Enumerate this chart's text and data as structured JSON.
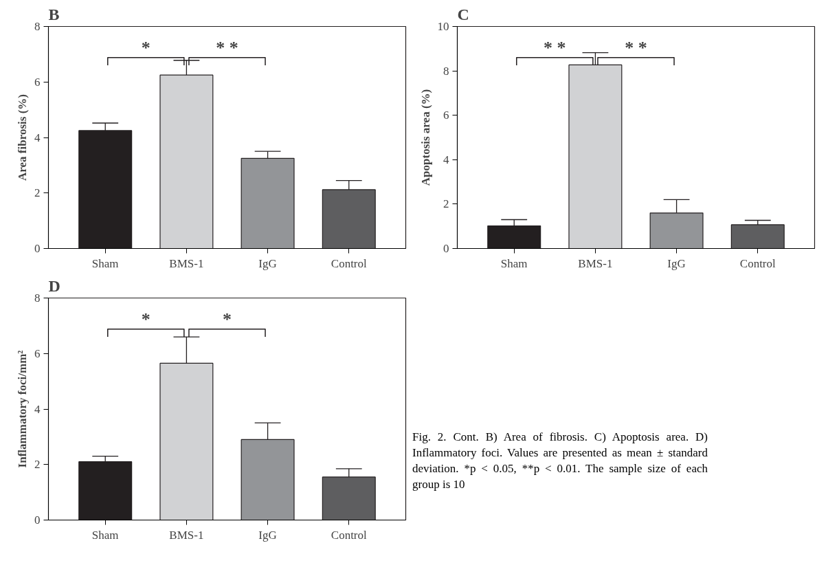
{
  "chart_data": [
    {
      "type": "bar",
      "title": "B",
      "ylabel": "Area fibrosis (%)",
      "categories": [
        "Sham",
        "BMS-1",
        "IgG",
        "Control"
      ],
      "values": [
        4.25,
        6.25,
        3.25,
        2.12
      ],
      "errors": [
        0.27,
        0.53,
        0.25,
        0.33
      ],
      "colors": [
        "#231f20",
        "#d1d2d4",
        "#939598",
        "#5e5e60"
      ],
      "ylim": [
        0,
        8
      ],
      "yticks": [
        0,
        2,
        4,
        6,
        8
      ],
      "grid": false,
      "annotations": [
        "*",
        "* *"
      ]
    },
    {
      "type": "bar",
      "title": "C",
      "ylabel": "Apoptosis area (%)",
      "categories": [
        "Sham",
        "BMS-1",
        "IgG",
        "Control"
      ],
      "values": [
        1.02,
        8.27,
        1.6,
        1.07
      ],
      "errors": [
        0.28,
        0.55,
        0.6,
        0.2
      ],
      "colors": [
        "#231f20",
        "#d1d2d4",
        "#939598",
        "#5e5e60"
      ],
      "ylim": [
        0,
        10
      ],
      "yticks": [
        0,
        2,
        4,
        6,
        8,
        10
      ],
      "grid": false,
      "annotations": [
        "* *",
        "* *"
      ]
    },
    {
      "type": "bar",
      "title": "D",
      "ylabel": "Inflammatory foci/mm²",
      "categories": [
        "Sham",
        "BMS-1",
        "IgG",
        "Control"
      ],
      "values": [
        2.1,
        5.65,
        2.9,
        1.55
      ],
      "errors": [
        0.2,
        0.95,
        0.6,
        0.3
      ],
      "colors": [
        "#231f20",
        "#d1d2d4",
        "#939598",
        "#5e5e60"
      ],
      "ylim": [
        0,
        8
      ],
      "yticks": [
        0,
        2,
        4,
        6,
        8
      ],
      "grid": false,
      "annotations": [
        "*",
        "*"
      ]
    },
    {
      "type": "other",
      "annotations": [
        "Fig. 2. Cont. B) Area of fibrosis. C) Apoptosis area. D) Inflammatory foci. Values are presented as mean ± standard deviation. *p < 0.05, **p < 0.01. The sample size of each group is 10"
      ]
    }
  ]
}
